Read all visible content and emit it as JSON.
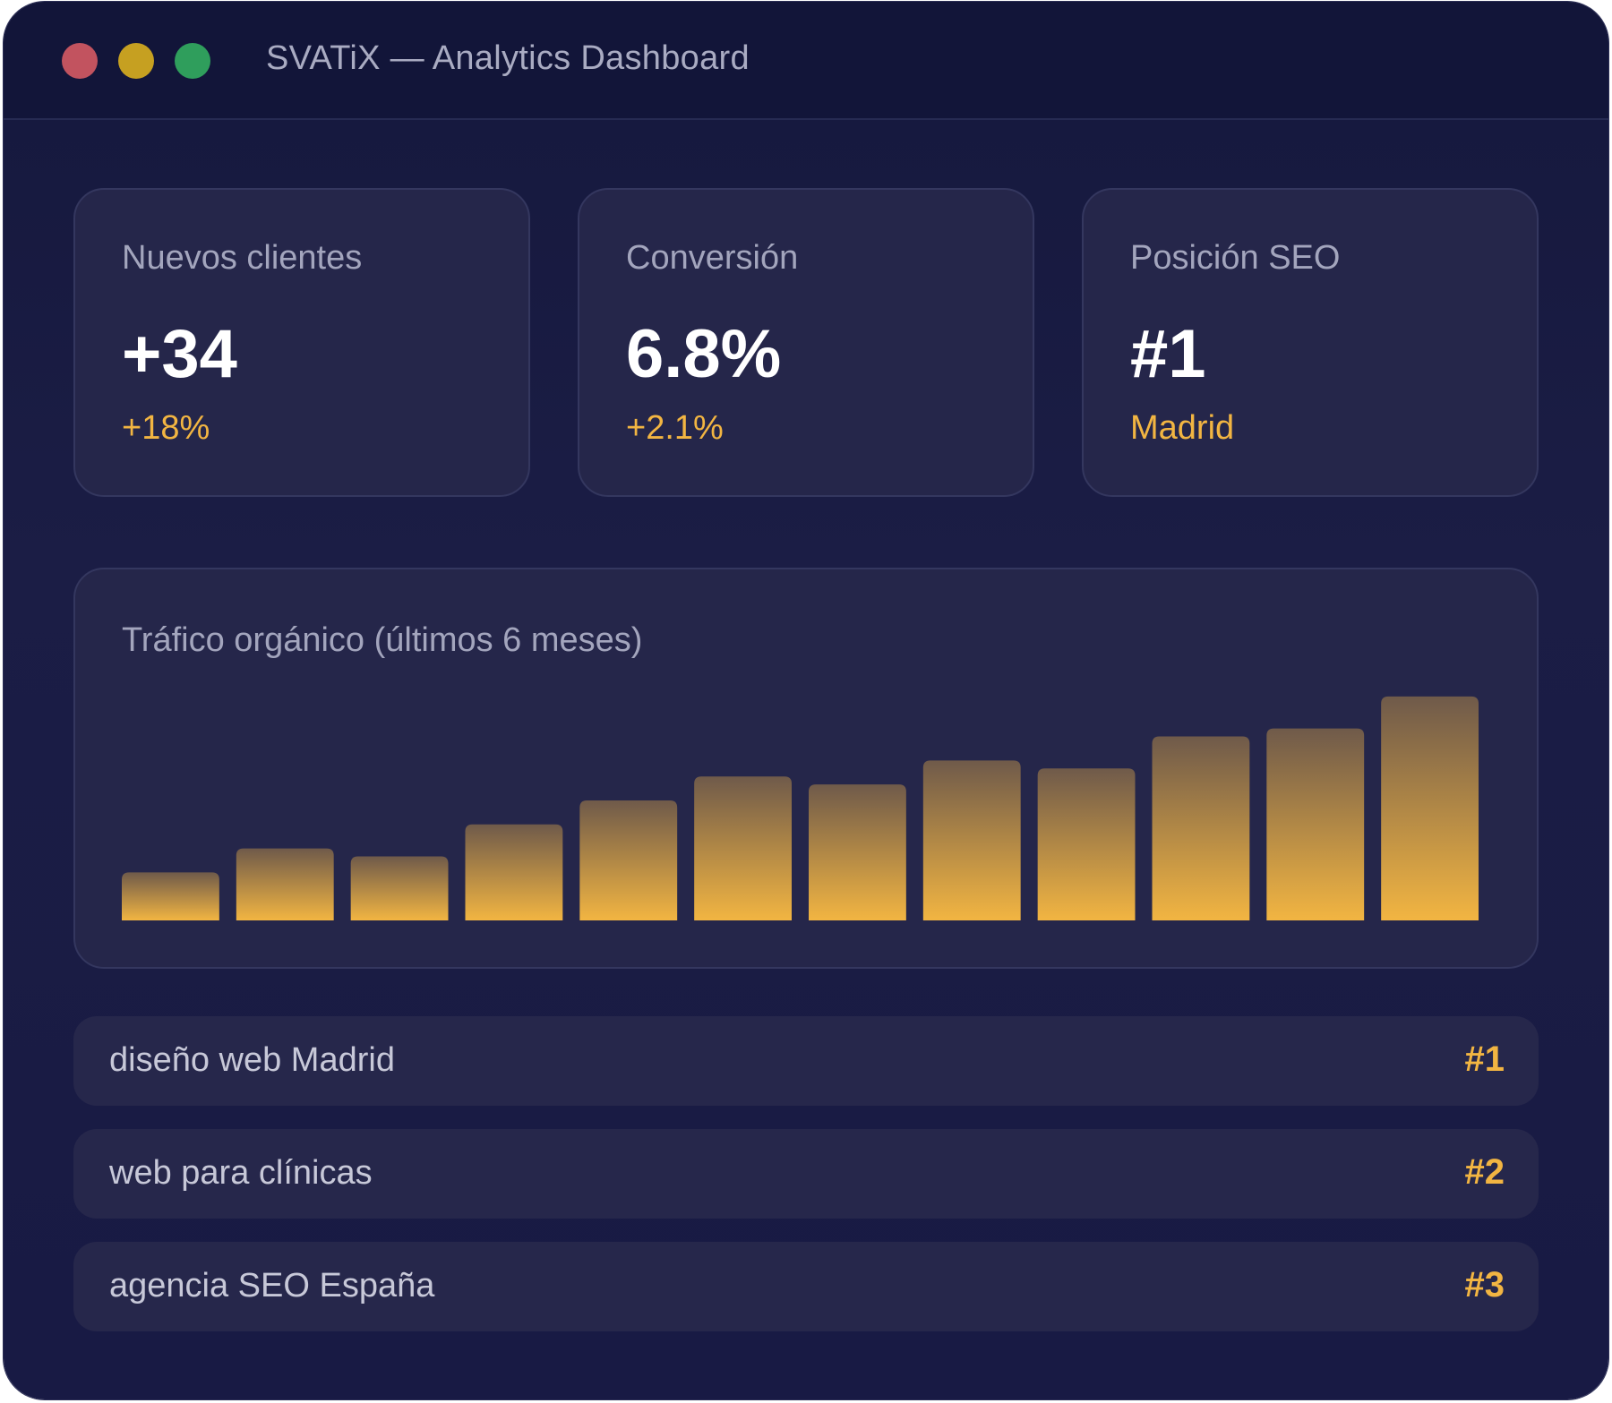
{
  "window": {
    "title": "SVATiX — Analytics Dashboard",
    "controls": [
      {
        "name": "close",
        "color": "#c2535f"
      },
      {
        "name": "minimize",
        "color": "#c6a021"
      },
      {
        "name": "maximize",
        "color": "#2f9e5c"
      }
    ]
  },
  "stats": [
    {
      "label": "Nuevos clientes",
      "value": "+34",
      "sub": "+18%"
    },
    {
      "label": "Conversión",
      "value": "6.8%",
      "sub": "+2.1%"
    },
    {
      "label": "Posición SEO",
      "value": "#1",
      "sub": "Madrid"
    }
  ],
  "chart_data": {
    "type": "bar",
    "title": "Tráfico orgánico (últimos 6 meses)",
    "values": [
      12,
      18,
      16,
      24,
      30,
      36,
      34,
      40,
      38,
      46,
      48,
      56
    ],
    "ylim": [
      0,
      60
    ],
    "grid": false,
    "bar_color_bottom": "#f2b542",
    "bar_color_top": "#6f5a4a"
  },
  "keywords": [
    {
      "label": "diseño web Madrid",
      "rank": "#1"
    },
    {
      "label": "web para clínicas",
      "rank": "#2"
    },
    {
      "label": "agencia SEO España",
      "rank": "#3"
    }
  ],
  "colors": {
    "accent": "#f2b542",
    "background": "#1b1d45",
    "card": "#25264a"
  }
}
